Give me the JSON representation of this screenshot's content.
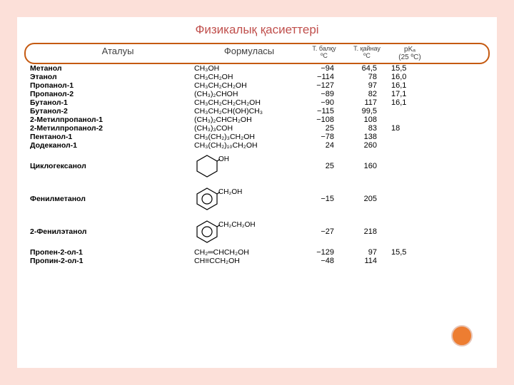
{
  "title": "Физикалық қасиеттері",
  "headers": {
    "name": "Аталуы",
    "formula": "Формуласы",
    "col3t": "Т. балқу",
    "col3s": "ºС",
    "col4t": "Т. қайнау",
    "col4s": "ºС",
    "col5t": "рKₐ",
    "col5s": "(25 ºС)"
  },
  "rows": [
    {
      "name": "Метанол",
      "formula": "CH₃OH",
      "mp": "−94",
      "bp": "64,5",
      "pka": "15,5"
    },
    {
      "name": "Этанол",
      "formula": "CH₃CH₂OH",
      "mp": "−114",
      "bp": "78",
      "pka": "16,0"
    },
    {
      "name": "Пропанол-1",
      "formula": "CH₃CH₂CH₂OH",
      "mp": "−127",
      "bp": "97",
      "pka": "16,1"
    },
    {
      "name": "Пропанол-2",
      "formula": "(CH₃)₂CHOH",
      "mp": "−89",
      "bp": "82",
      "pka": "17,1"
    },
    {
      "name": "Бутанол-1",
      "formula": "CH₃CH₂CH₂CH₂OH",
      "mp": "−90",
      "bp": "117",
      "pka": "16,1"
    },
    {
      "name": "Бутанол-2",
      "formula": "CH₃CH₂CH(OH)CH₃",
      "mp": "−115",
      "bp": "99,5",
      "pka": ""
    },
    {
      "name": "2-Метилпропанол-1",
      "formula": "(CH₃)₂CHCH₂OH",
      "mp": "−108",
      "bp": "108",
      "pka": ""
    },
    {
      "name": "2-Метилпропанол-2",
      "formula": "(CH₃)₃COH",
      "mp": "25",
      "bp": "83",
      "pka": "18"
    },
    {
      "name": "Пентанол-1",
      "formula": "CH₃(CH₂)₃CH₂OH",
      "mp": "−78",
      "bp": "138",
      "pka": ""
    },
    {
      "name": "Додеканол-1",
      "formula": "CH₃(CH₂)₁₀CH₂OH",
      "mp": "24",
      "bp": "260",
      "pka": ""
    }
  ],
  "structRows": [
    {
      "name": "Циклогексанол",
      "label": "OH",
      "svg": "hex",
      "mp": "25",
      "bp": "160",
      "pka": ""
    },
    {
      "name": "Фенилметанол",
      "label": "CH₂OH",
      "svg": "ring",
      "mp": "−15",
      "bp": "205",
      "pka": ""
    },
    {
      "name": "2-Фенилэтанол",
      "label": "CH₂CH₂OH",
      "svg": "ring",
      "mp": "−27",
      "bp": "218",
      "pka": ""
    }
  ],
  "lastRows": [
    {
      "name": "Пропен-2-ол-1",
      "formula": "CH₂═CHCH₂OH",
      "mp": "−129",
      "bp": "97",
      "pka": "15,5"
    },
    {
      "name": "Пропин-2-ол-1",
      "formula": "CH≡CCH₂OH",
      "mp": "−48",
      "bp": "114",
      "pka": ""
    }
  ]
}
